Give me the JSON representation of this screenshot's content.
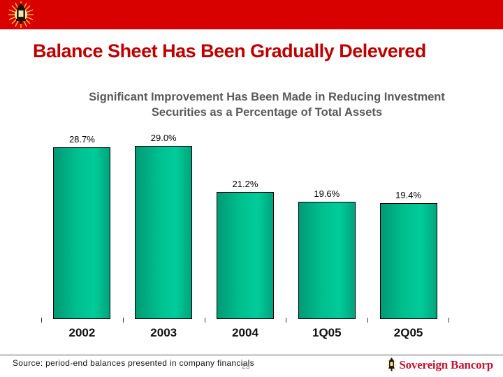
{
  "slide": {
    "title": "Balance Sheet Has Been Gradually Delevered",
    "subtitle_line1": "Significant Improvement Has Been Made in Reducing Investment",
    "subtitle_line2": "Securities as a Percentage of Total Assets",
    "source_note": "Source: period-end balances presented in company financials",
    "page_number": "23",
    "brand_name": "Sovereign Bancorp"
  },
  "colors": {
    "header_red": "#d90000",
    "title_red": "#c00000",
    "subtitle_gray": "#595959",
    "bar_green_light": "#00cc9a",
    "bar_green_dark": "#009a74",
    "brand_red": "#c41230"
  },
  "icons": {
    "header_logo": "lantern-burst-icon",
    "brand_logo": "lantern-icon"
  },
  "chart_data": {
    "type": "bar",
    "categories": [
      "2002",
      "2003",
      "2004",
      "1Q05",
      "2Q05"
    ],
    "values": [
      28.7,
      29.0,
      21.2,
      19.6,
      19.4
    ],
    "value_labels": [
      "28.7%",
      "29.0%",
      "21.2%",
      "19.6%",
      "19.4%"
    ],
    "title": "Significant Improvement Has Been Made in Reducing Investment Securities as a Percentage of Total Assets",
    "xlabel": "",
    "ylabel": "",
    "ylim": [
      0,
      30
    ],
    "grid": false,
    "legend": false,
    "bar_color": "teal-green gradient",
    "value_label_position": "above bars",
    "axis": "x ticks only, no axis line, no y axis"
  }
}
